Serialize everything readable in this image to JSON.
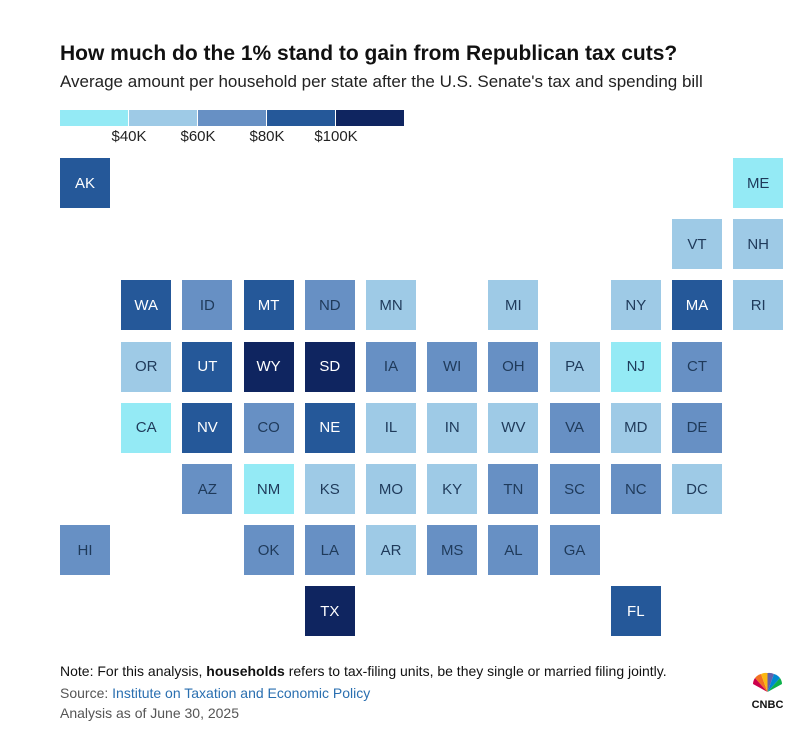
{
  "title": "How much do the 1% stand to gain from Republican tax cuts?",
  "subtitle": "Average amount per household per state after the U.S. Senate's tax and spending bill",
  "legend": {
    "colors": [
      "#94eaf5",
      "#9ecae6",
      "#6790c4",
      "#255899",
      "#0f2560"
    ],
    "labels": [
      "$40K",
      "$60K",
      "$80K",
      "$100K"
    ]
  },
  "bins": {
    "1": "#94eaf5",
    "2": "#9ecae6",
    "3": "#6790c4",
    "4": "#255899",
    "5": "#0f2560"
  },
  "states": [
    {
      "abbr": "AK",
      "bin": 4
    },
    {
      "abbr": "ME",
      "bin": 1
    },
    {
      "abbr": "VT",
      "bin": 2
    },
    {
      "abbr": "NH",
      "bin": 2
    },
    {
      "abbr": "WA",
      "bin": 4
    },
    {
      "abbr": "ID",
      "bin": 3
    },
    {
      "abbr": "MT",
      "bin": 4
    },
    {
      "abbr": "ND",
      "bin": 3
    },
    {
      "abbr": "MN",
      "bin": 2
    },
    {
      "abbr": "MI",
      "bin": 2
    },
    {
      "abbr": "NY",
      "bin": 2
    },
    {
      "abbr": "MA",
      "bin": 4
    },
    {
      "abbr": "RI",
      "bin": 2
    },
    {
      "abbr": "OR",
      "bin": 2
    },
    {
      "abbr": "UT",
      "bin": 4
    },
    {
      "abbr": "WY",
      "bin": 5
    },
    {
      "abbr": "SD",
      "bin": 5
    },
    {
      "abbr": "IA",
      "bin": 3
    },
    {
      "abbr": "WI",
      "bin": 3
    },
    {
      "abbr": "OH",
      "bin": 3
    },
    {
      "abbr": "PA",
      "bin": 2
    },
    {
      "abbr": "NJ",
      "bin": 1
    },
    {
      "abbr": "CT",
      "bin": 3
    },
    {
      "abbr": "CA",
      "bin": 1
    },
    {
      "abbr": "NV",
      "bin": 4
    },
    {
      "abbr": "CO",
      "bin": 3
    },
    {
      "abbr": "NE",
      "bin": 4
    },
    {
      "abbr": "IL",
      "bin": 2
    },
    {
      "abbr": "IN",
      "bin": 2
    },
    {
      "abbr": "WV",
      "bin": 2
    },
    {
      "abbr": "VA",
      "bin": 3
    },
    {
      "abbr": "MD",
      "bin": 2
    },
    {
      "abbr": "DE",
      "bin": 3
    },
    {
      "abbr": "AZ",
      "bin": 3
    },
    {
      "abbr": "NM",
      "bin": 1
    },
    {
      "abbr": "KS",
      "bin": 2
    },
    {
      "abbr": "MO",
      "bin": 2
    },
    {
      "abbr": "KY",
      "bin": 2
    },
    {
      "abbr": "TN",
      "bin": 3
    },
    {
      "abbr": "SC",
      "bin": 3
    },
    {
      "abbr": "NC",
      "bin": 3
    },
    {
      "abbr": "DC",
      "bin": 2
    },
    {
      "abbr": "HI",
      "bin": 3
    },
    {
      "abbr": "OK",
      "bin": 3
    },
    {
      "abbr": "LA",
      "bin": 3
    },
    {
      "abbr": "AR",
      "bin": 2
    },
    {
      "abbr": "MS",
      "bin": 3
    },
    {
      "abbr": "AL",
      "bin": 3
    },
    {
      "abbr": "GA",
      "bin": 3
    },
    {
      "abbr": "TX",
      "bin": 5
    },
    {
      "abbr": "FL",
      "bin": 4
    }
  ],
  "note": {
    "prefix": "Note: For this analysis, ",
    "bold": "households",
    "suffix": " refers to tax-filing units, be they single or married filing jointly."
  },
  "source": {
    "prefix": "Source: ",
    "link": "Institute on Taxation and Economic Policy"
  },
  "analysis_date": "Analysis as of June 30, 2025",
  "logo_text": "CNBC"
}
